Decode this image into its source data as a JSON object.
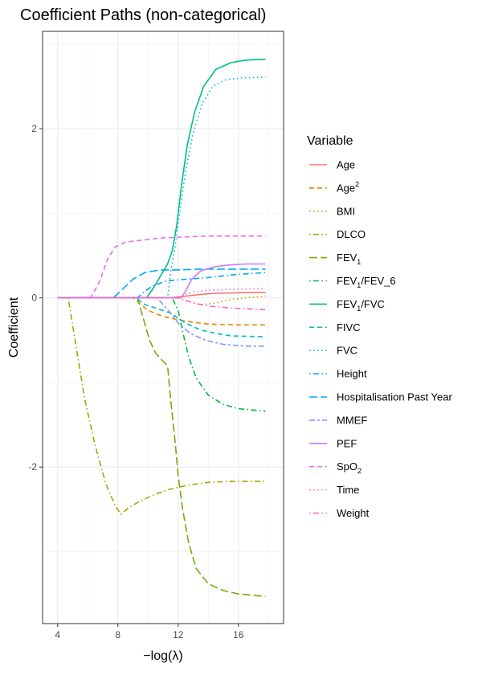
{
  "chart_data": {
    "type": "line",
    "title": "Coefficient Paths (non-categorical)",
    "xlabel": "−log(λ)",
    "ylabel": "Coefficient",
    "xlim": [
      3,
      19
    ],
    "ylim": [
      -3.85,
      3.15
    ],
    "xticks": [
      4,
      8,
      12,
      16
    ],
    "xtick_labels": [
      "4",
      "8",
      "12",
      "16"
    ],
    "yticks": [
      -2,
      0,
      2
    ],
    "ytick_labels": [
      "-2",
      "0",
      "2"
    ],
    "grid": true,
    "legend": {
      "title": "Variable",
      "placement": "right"
    },
    "series": [
      {
        "name": "Age",
        "color": "#F8766D",
        "dash": "solid",
        "points": [
          [
            4,
            0
          ],
          [
            11.5,
            0
          ],
          [
            12.5,
            0.02
          ],
          [
            13.5,
            0.04
          ],
          [
            14.5,
            0.055
          ],
          [
            16,
            0.06
          ],
          [
            17.8,
            0.065
          ]
        ]
      },
      {
        "name": "Age",
        "sup": "2",
        "color": "#E58700",
        "dash": "dashed",
        "points": [
          [
            4,
            0
          ],
          [
            9,
            0
          ],
          [
            10,
            -0.15
          ],
          [
            11,
            -0.22
          ],
          [
            12,
            -0.26
          ],
          [
            13,
            -0.29
          ],
          [
            14,
            -0.31
          ],
          [
            16,
            -0.32
          ],
          [
            17.8,
            -0.32
          ]
        ]
      },
      {
        "name": "BMI",
        "color": "#C99800",
        "dash": "dotted",
        "points": [
          [
            4,
            0
          ],
          [
            12,
            0
          ],
          [
            12.8,
            -0.05
          ],
          [
            13.5,
            -0.08
          ],
          [
            14.5,
            -0.06
          ],
          [
            15.5,
            -0.02
          ],
          [
            16.5,
            0.0
          ],
          [
            17.8,
            0.02
          ]
        ]
      },
      {
        "name": "DLCO",
        "color": "#A3A500",
        "dash": "dotdash",
        "points": [
          [
            4.7,
            0
          ],
          [
            5.2,
            -0.55
          ],
          [
            5.8,
            -1.2
          ],
          [
            6.5,
            -1.75
          ],
          [
            7.2,
            -2.2
          ],
          [
            7.8,
            -2.45
          ],
          [
            8.2,
            -2.56
          ],
          [
            8.7,
            -2.48
          ],
          [
            9.5,
            -2.4
          ],
          [
            10.5,
            -2.32
          ],
          [
            11.5,
            -2.26
          ],
          [
            12.5,
            -2.22
          ],
          [
            14,
            -2.18
          ],
          [
            15.5,
            -2.17
          ],
          [
            17.8,
            -2.17
          ]
        ]
      },
      {
        "name": "FEV",
        "sub": "1",
        "color": "#6BB100",
        "dash": "longdash",
        "points": [
          [
            4,
            0
          ],
          [
            9.3,
            0
          ],
          [
            9.7,
            -0.25
          ],
          [
            10.1,
            -0.5
          ],
          [
            10.5,
            -0.65
          ],
          [
            11,
            -0.75
          ],
          [
            11.3,
            -0.8
          ],
          [
            11.5,
            -1.2
          ],
          [
            11.8,
            -1.7
          ],
          [
            12,
            -2.1
          ],
          [
            12.3,
            -2.5
          ],
          [
            12.7,
            -2.9
          ],
          [
            13.2,
            -3.2
          ],
          [
            14,
            -3.38
          ],
          [
            15,
            -3.46
          ],
          [
            16,
            -3.5
          ],
          [
            17.8,
            -3.53
          ]
        ]
      },
      {
        "name": "FEV",
        "sub": "1",
        "suffix": "/FEV_6",
        "color": "#00BA38",
        "dash": "dotdash",
        "points": [
          [
            4,
            0
          ],
          [
            11.6,
            0
          ],
          [
            12,
            -0.15
          ],
          [
            12.3,
            -0.4
          ],
          [
            12.7,
            -0.7
          ],
          [
            13.2,
            -0.95
          ],
          [
            14,
            -1.15
          ],
          [
            15,
            -1.26
          ],
          [
            16,
            -1.31
          ],
          [
            17.8,
            -1.34
          ]
        ]
      },
      {
        "name": "FEV",
        "sub": "1",
        "suffix": "/FVC",
        "color": "#00BF7D",
        "dash": "solid",
        "points": [
          [
            4,
            0
          ],
          [
            9.9,
            0
          ],
          [
            10.3,
            0.1
          ],
          [
            10.8,
            0.25
          ],
          [
            11.3,
            0.4
          ],
          [
            11.6,
            0.55
          ],
          [
            11.9,
            0.85
          ],
          [
            12.2,
            1.3
          ],
          [
            12.6,
            1.8
          ],
          [
            13.1,
            2.2
          ],
          [
            13.7,
            2.5
          ],
          [
            14.5,
            2.7
          ],
          [
            15.5,
            2.78
          ],
          [
            16.5,
            2.81
          ],
          [
            17.8,
            2.82
          ]
        ]
      },
      {
        "name": "FIVC",
        "color": "#00C0B8",
        "dash": "dashed",
        "points": [
          [
            4,
            0
          ],
          [
            9.2,
            0
          ],
          [
            9.8,
            -0.08
          ],
          [
            10.5,
            -0.12
          ],
          [
            11.5,
            -0.18
          ],
          [
            12.5,
            -0.3
          ],
          [
            13.5,
            -0.38
          ],
          [
            14.5,
            -0.42
          ],
          [
            15.5,
            -0.45
          ],
          [
            17.8,
            -0.46
          ]
        ]
      },
      {
        "name": "FVC",
        "color": "#00B4EF",
        "dash": "dotted",
        "points": [
          [
            4,
            0
          ],
          [
            11.3,
            0
          ],
          [
            11.5,
            0.3
          ],
          [
            11.8,
            0.6
          ],
          [
            12.1,
            1.0
          ],
          [
            12.5,
            1.5
          ],
          [
            13,
            1.95
          ],
          [
            13.6,
            2.3
          ],
          [
            14.3,
            2.5
          ],
          [
            15.2,
            2.58
          ],
          [
            16.2,
            2.6
          ],
          [
            17.8,
            2.61
          ]
        ]
      },
      {
        "name": "Height",
        "color": "#00A5FF",
        "dash": "dotdash",
        "points": [
          [
            4,
            0
          ],
          [
            9.3,
            0
          ],
          [
            9.8,
            0.08
          ],
          [
            10.3,
            0.14
          ],
          [
            11.2,
            0.2
          ],
          [
            12.5,
            0.22
          ],
          [
            14,
            0.24
          ],
          [
            15.5,
            0.27
          ],
          [
            17.8,
            0.3
          ]
        ]
      },
      {
        "name": "Hospitalisation Past Year",
        "color": "#7F96FF",
        "color_override": "#00A9FF",
        "dash": "longdash",
        "points": [
          [
            4,
            0
          ],
          [
            7.7,
            0
          ],
          [
            8.3,
            0.1
          ],
          [
            9,
            0.22
          ],
          [
            9.8,
            0.3
          ],
          [
            10.8,
            0.33
          ],
          [
            12,
            0.33
          ],
          [
            13.5,
            0.34
          ],
          [
            15.5,
            0.34
          ],
          [
            17.8,
            0.34
          ]
        ]
      },
      {
        "name": "MMEF",
        "color": "#7F96FF",
        "dash": "twodash",
        "points": [
          [
            4,
            0
          ],
          [
            10.6,
            0
          ],
          [
            11,
            -0.08
          ],
          [
            11.5,
            -0.18
          ],
          [
            12,
            -0.3
          ],
          [
            12.8,
            -0.42
          ],
          [
            13.8,
            -0.5
          ],
          [
            15,
            -0.55
          ],
          [
            16.5,
            -0.57
          ],
          [
            17.8,
            -0.57
          ]
        ]
      },
      {
        "name": "PEF",
        "color": "#C77CFF",
        "dash": "solid",
        "points": [
          [
            4,
            0
          ],
          [
            12.2,
            0
          ],
          [
            12.5,
            0.08
          ],
          [
            12.9,
            0.22
          ],
          [
            13.5,
            0.32
          ],
          [
            14.5,
            0.37
          ],
          [
            15.5,
            0.39
          ],
          [
            16.5,
            0.4
          ],
          [
            17.8,
            0.4
          ]
        ]
      },
      {
        "name": "SpO",
        "sub": "2",
        "color": "#E76BF3",
        "dash": "dashed",
        "points": [
          [
            4,
            0
          ],
          [
            6.2,
            0
          ],
          [
            6.8,
            0.2
          ],
          [
            7.3,
            0.45
          ],
          [
            7.8,
            0.6
          ],
          [
            8.5,
            0.66
          ],
          [
            9.5,
            0.68
          ],
          [
            11,
            0.71
          ],
          [
            12.5,
            0.72
          ],
          [
            14,
            0.73
          ],
          [
            17.8,
            0.73
          ]
        ]
      },
      {
        "name": "Time",
        "color": "#FA62DB",
        "dash": "dotted",
        "points": [
          [
            4,
            0
          ],
          [
            12,
            0
          ],
          [
            12.5,
            0.04
          ],
          [
            13,
            0.07
          ],
          [
            14,
            0.09
          ],
          [
            15.5,
            0.1
          ],
          [
            17.8,
            0.11
          ]
        ]
      },
      {
        "name": "Weight",
        "color": "#FF62BC",
        "dash": "dotdash",
        "points": [
          [
            4,
            0
          ],
          [
            12,
            0
          ],
          [
            12.5,
            -0.03
          ],
          [
            13.2,
            -0.07
          ],
          [
            14.2,
            -0.1
          ],
          [
            15.5,
            -0.12
          ],
          [
            17.8,
            -0.14
          ]
        ]
      }
    ]
  }
}
